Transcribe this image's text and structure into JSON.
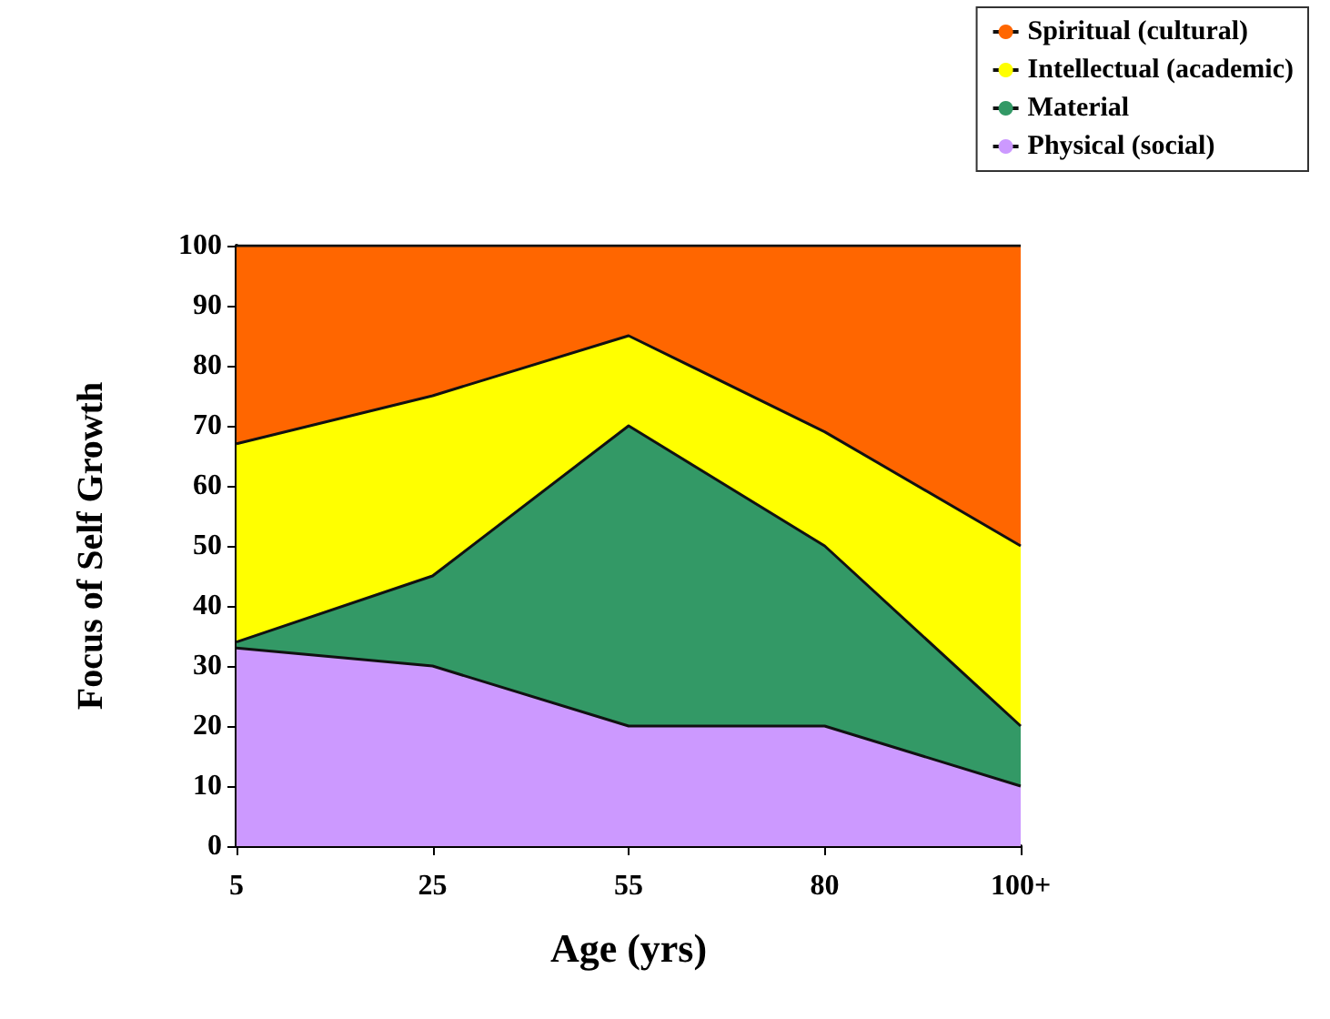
{
  "chart_data": {
    "type": "area",
    "stacked": true,
    "xlabel": "Age (yrs)",
    "ylabel": "Focus of Self Growth",
    "categories": [
      "5",
      "25",
      "55",
      "80",
      "100+"
    ],
    "series": [
      {
        "name": "Physical (social)",
        "color": "#cc99ff",
        "values": [
          33,
          30,
          20,
          20,
          10
        ]
      },
      {
        "name": "Material",
        "color": "#339966",
        "values": [
          1,
          15,
          50,
          30,
          10
        ]
      },
      {
        "name": "Intellectual (academic)",
        "color": "#ffff00",
        "values": [
          33,
          30,
          15,
          19,
          30
        ]
      },
      {
        "name": "Spiritual (cultural)",
        "color": "#ff6600",
        "values": [
          33,
          25,
          15,
          31,
          50
        ]
      }
    ],
    "ylim": [
      0,
      100
    ],
    "yticks": [
      0,
      10,
      20,
      30,
      40,
      50,
      60,
      70,
      80,
      90,
      100
    ],
    "grid": false,
    "legend": "top right"
  }
}
